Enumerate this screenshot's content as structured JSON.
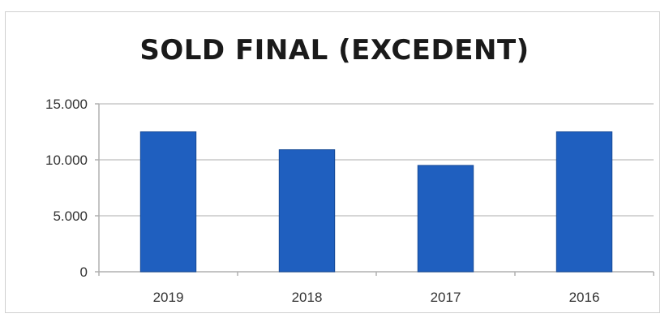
{
  "chart_data": {
    "type": "bar",
    "title": "SOLD FINAL (EXCEDENT)",
    "xlabel": "",
    "ylabel": "",
    "categories": [
      "2019",
      "2018",
      "2017",
      "2016"
    ],
    "values": [
      12500,
      10900,
      9500,
      12500
    ],
    "ylim": [
      0,
      15000
    ],
    "yticks": [
      0,
      5000,
      10000,
      15000
    ],
    "ytick_labels": [
      "0",
      "5.000",
      "10.000",
      "15.000"
    ],
    "grid": true,
    "legend": "none",
    "colors": {
      "bar": "#1f5fbf",
      "bar_edge": "#174a96",
      "grid": "#c8c8c8",
      "axis": "#b0b0b0"
    }
  }
}
